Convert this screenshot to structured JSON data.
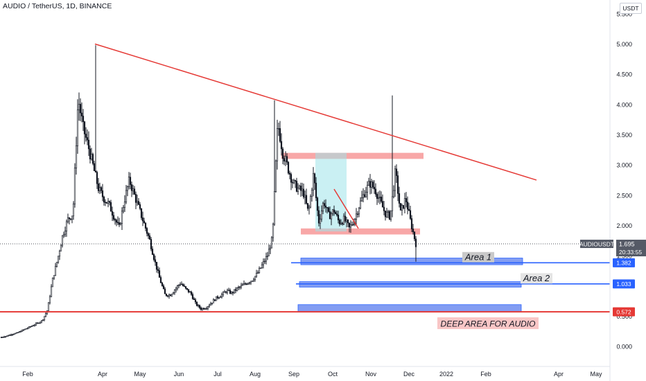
{
  "header": {
    "title": "AUDIO / TetherUS, 1D, BINANCE",
    "currency": "USDT"
  },
  "colors": {
    "candle": "#131722",
    "trendline": "#e53935",
    "support_line": "#e53935",
    "area_line": "#2962ff",
    "area_fill": "#6d8cf0",
    "zone_fill": "#f58a8a",
    "position_fill": "#9fe3ea",
    "axis_text": "#131722",
    "grid_text": "#5d606b"
  },
  "chart_data": {
    "type": "candlestick",
    "symbol": "AUDIOUSDT",
    "x_tick_labels": [
      "Feb",
      "Apr",
      "May",
      "Jun",
      "Jul",
      "Aug",
      "Sep",
      "Oct",
      "Nov",
      "Dec",
      "2022",
      "Feb",
      "Apr",
      "May"
    ],
    "y_tick_labels": [
      "5.500",
      "5.000",
      "4.500",
      "4.000",
      "3.500",
      "3.000",
      "2.500",
      "2.000",
      "1.500",
      "1.000",
      "0.500",
      "0.000"
    ],
    "ylim": [
      -0.25,
      5.6
    ],
    "last_price": {
      "symbol": "AUDIOUSDT",
      "value": "1.695",
      "value_num": 1.695,
      "countdown": "20:33:55"
    },
    "close_series": [
      [
        0.15,
        0.17,
        0.2,
        0.22,
        0.26,
        0.3,
        0.34,
        0.38,
        0.43,
        0.6,
        1.1,
        1.45,
        1.85,
        2.1,
        2.2,
        4.1,
        3.6,
        3.3,
        2.95,
        2.6,
        2.45,
        2.35,
        2.15,
        1.95,
        2.4,
        2.75,
        2.5,
        2.25,
        2.0,
        1.75,
        1.4,
        1.1,
        0.85,
        0.85,
        0.95,
        1.05,
        0.95,
        0.88,
        0.7,
        0.62,
        0.64,
        0.72,
        0.8,
        0.85,
        0.92,
        0.88,
        0.95,
        1.0,
        1.05,
        1.1,
        1.2,
        1.35,
        1.5,
        1.8,
        3.7,
        3.2,
        2.95,
        2.7,
        2.6,
        2.55,
        2.2,
        2.85,
        2.05,
        2.4,
        2.15,
        2.25,
        2.05,
        2.1,
        1.95,
        2.1,
        2.35,
        2.55,
        2.7,
        2.6,
        2.4,
        2.2,
        2.15,
        2.9,
        2.2,
        2.45,
        2.05,
        1.695
      ]
    ],
    "trendline": {
      "start": {
        "x": "Mar 27",
        "y": 5.0
      },
      "end": {
        "x": "Jan 27",
        "y": 2.75
      }
    },
    "support_line": {
      "value": 0.572,
      "label": "0.572"
    },
    "zones": [
      {
        "name": "resistance-zone",
        "y_low": 3.1,
        "y_high": 3.2
      },
      {
        "name": "range-low-zone",
        "y_low": 1.85,
        "y_high": 1.95
      }
    ],
    "areas": [
      {
        "label": "Area 1",
        "level": 1.382,
        "level_label": "1.382"
      },
      {
        "label": "Area 2",
        "level": 1.033,
        "level_label": "1.033"
      },
      {
        "label": "DEEP AREA FOR AUDIO",
        "level": 0.572,
        "level_label": "0.572"
      }
    ]
  }
}
